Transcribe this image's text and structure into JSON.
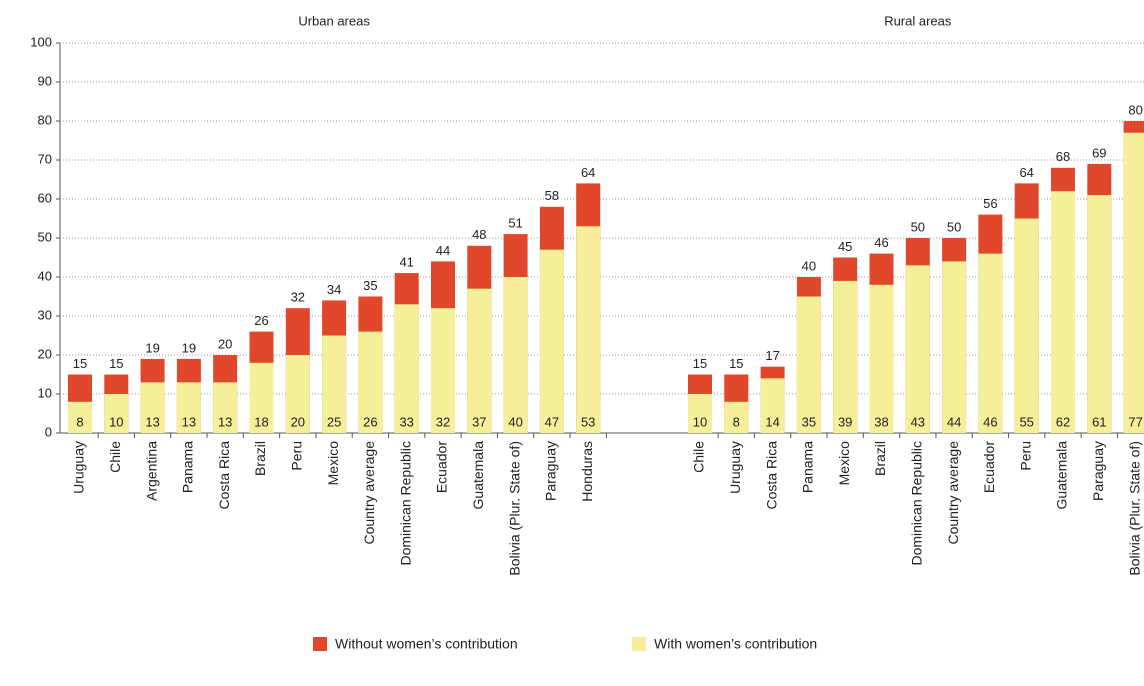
{
  "chart_data": {
    "type": "bar",
    "ylim": [
      0,
      100
    ],
    "yticks": [
      0,
      10,
      20,
      30,
      40,
      50,
      60,
      70,
      80,
      90,
      100
    ],
    "grid": true,
    "legend": "bottom",
    "series": [
      {
        "name": "Without women’s contribution",
        "color": "#e0472b"
      },
      {
        "name": "With women’s contribution",
        "color": "#f6ef9a"
      }
    ],
    "panels": [
      {
        "title": "Urban areas",
        "categories": [
          "Uruguay",
          "Chile",
          "Argentina",
          "Panama",
          "Costa Rica",
          "Brazil",
          "Peru",
          "Mexico",
          "Country average",
          "Dominican Republic",
          "Ecuador",
          "Guatemala",
          "Bolivia (Plur. State of)",
          "Paraguay",
          "Honduras"
        ],
        "values": [
          [
            15,
            15,
            19,
            19,
            20,
            26,
            32,
            34,
            35,
            41,
            44,
            48,
            51,
            58,
            64
          ],
          [
            8,
            10,
            13,
            13,
            13,
            18,
            20,
            25,
            26,
            33,
            32,
            37,
            40,
            47,
            53
          ]
        ]
      },
      {
        "title": "Rural areas",
        "categories": [
          "Chile",
          "Uruguay",
          "Costa Rica",
          "Panama",
          "Mexico",
          "Brazil",
          "Dominican Republic",
          "Country average",
          "Ecuador",
          "Peru",
          "Guatemala",
          "Paraguay",
          "Bolivia (Plur. State of)"
        ],
        "values": [
          [
            15,
            15,
            17,
            40,
            45,
            46,
            50,
            50,
            56,
            64,
            68,
            69,
            80
          ],
          [
            10,
            8,
            14,
            35,
            39,
            38,
            43,
            44,
            46,
            55,
            62,
            61,
            77
          ]
        ]
      }
    ]
  }
}
